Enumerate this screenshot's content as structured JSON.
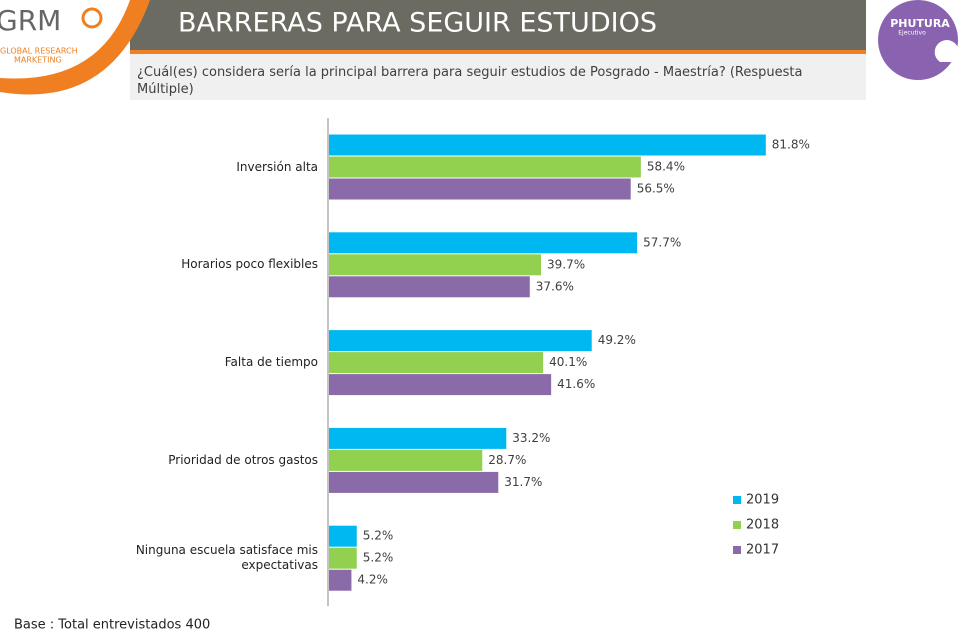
{
  "chart_data": {
    "type": "hbar",
    "title": "BARRERAS PARA SEGUIR ESTUDIOS",
    "subtitle": "¿Cuál(es) considera sería la principal barrera para seguir estudios de Posgrado - Maestría? (Respuesta Múltiple)",
    "categories": [
      "Inversión alta",
      "Horarios poco flexibles",
      "Falta de tiempo",
      "Prioridad de otros gastos",
      "Ninguna escuela satisface mis expectativas"
    ],
    "series": [
      {
        "name": "2019",
        "color": "#00b8f1",
        "values": [
          81.8,
          57.7,
          49.2,
          33.2,
          5.2
        ],
        "value_labels": [
          "81.8%",
          "57.7%",
          "49.2%",
          "33.2%",
          "5.2%"
        ]
      },
      {
        "name": "2018",
        "color": "#92d050",
        "values": [
          58.4,
          39.7,
          40.1,
          28.7,
          5.2
        ],
        "value_labels": [
          "58.4%",
          "39.7%",
          "40.1%",
          "28.7%",
          "5.2%"
        ]
      },
      {
        "name": "2017",
        "color": "#8a6aa8",
        "values": [
          56.5,
          37.6,
          41.6,
          31.7,
          4.2
        ],
        "value_labels": [
          "56.5%",
          "37.6%",
          "41.6%",
          "31.7%",
          "4.2%"
        ]
      }
    ],
    "xlim": [
      0,
      100
    ],
    "legend": "lower-right"
  },
  "footnote": "Base : Total entrevistados 400",
  "logos": {
    "left": {
      "name": "GRM",
      "line1": "GLOBAL RESEARCH",
      "line2": "MARKETING"
    },
    "right": {
      "name": "PHUTURA",
      "tagline": "Ejecutivo"
    }
  }
}
